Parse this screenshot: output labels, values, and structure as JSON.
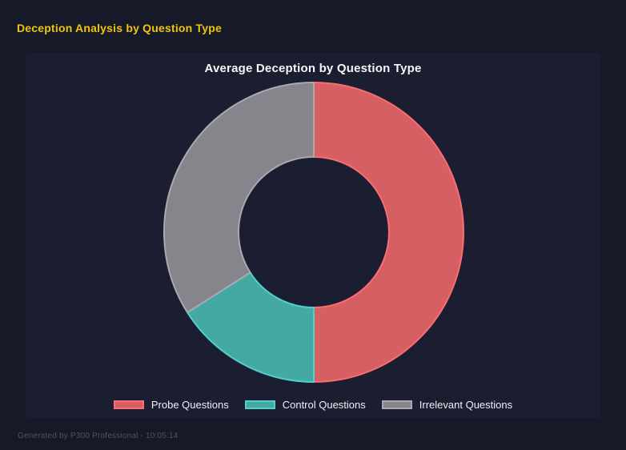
{
  "page": {
    "title": "Deception Analysis by Question Type",
    "footer": "Generated by P300 Professional - 10:05:14",
    "background_color": "#161a28",
    "panel_background_color": "#1b1e31",
    "title_color": "#f1c40f"
  },
  "chart_data": {
    "type": "pie",
    "subtype": "doughnut",
    "title": "Average Deception by Question Type",
    "legend_position": "bottom",
    "cutout_percent": 50,
    "categories": [
      "Probe Questions",
      "Control Questions",
      "Irrelevant Questions"
    ],
    "values": [
      50,
      16,
      34
    ],
    "segments": [
      {
        "label": "Probe Questions",
        "value": 50,
        "fill": "#d65f64",
        "border": "#fb6d72"
      },
      {
        "label": "Control Questions",
        "value": 16,
        "fill": "#45a9a3",
        "border": "#4ed2c9"
      },
      {
        "label": "Irrelevant Questions",
        "value": 34,
        "fill": "#85858b",
        "border": "#a9a9af"
      }
    ]
  }
}
